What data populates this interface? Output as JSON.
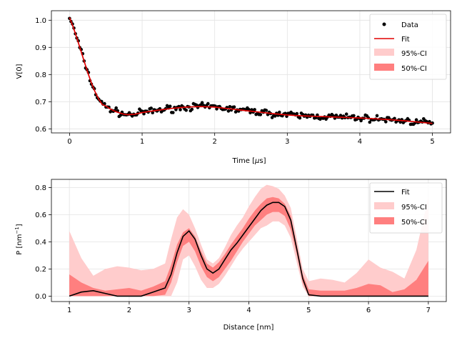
{
  "chart_data": [
    {
      "type": "scatter",
      "xlabel": "Time [μs]",
      "ylabel": "V[0]",
      "xlim": [
        -0.25,
        5.25
      ],
      "ylim": [
        0.585,
        1.035
      ],
      "xticks": [
        "0",
        "1",
        "2",
        "3",
        "4",
        "5"
      ],
      "yticks": [
        "0.6",
        "0.7",
        "0.8",
        "0.9",
        "1.0"
      ],
      "grid": true,
      "legend_position": "top-right",
      "legend": [
        "Data",
        "Fit",
        "95%-CI",
        "50%-CI"
      ],
      "fit": {
        "x": [
          0,
          0.05,
          0.1,
          0.15,
          0.2,
          0.25,
          0.3,
          0.35,
          0.4,
          0.45,
          0.5,
          0.55,
          0.6,
          0.65,
          0.7,
          0.75,
          0.8,
          0.9,
          1.0,
          1.2,
          1.4,
          1.6,
          1.8,
          2.0,
          2.2,
          2.4,
          2.6,
          2.8,
          3.0,
          3.2,
          3.4,
          3.6,
          3.8,
          4.0,
          4.2,
          4.4,
          4.6,
          4.8,
          5.0
        ],
        "y": [
          1.01,
          0.975,
          0.935,
          0.892,
          0.85,
          0.808,
          0.77,
          0.737,
          0.71,
          0.69,
          0.684,
          0.675,
          0.668,
          0.662,
          0.658,
          0.654,
          0.652,
          0.654,
          0.66,
          0.668,
          0.675,
          0.68,
          0.682,
          0.68,
          0.674,
          0.668,
          0.662,
          0.656,
          0.651,
          0.648,
          0.646,
          0.644,
          0.642,
          0.64,
          0.637,
          0.634,
          0.63,
          0.625,
          0.62
        ]
      },
      "colors": {
        "data": "#000000",
        "fit": "#e00000",
        "ci95": "#ffcccc",
        "ci50": "#ff7f7f"
      }
    },
    {
      "type": "line",
      "xlabel": "Distance [nm]",
      "ylabel": "P [nm⁻¹]",
      "xlim": [
        0.7,
        7.3
      ],
      "ylim": [
        -0.04,
        0.86
      ],
      "xticks": [
        "1",
        "2",
        "3",
        "4",
        "5",
        "6",
        "7"
      ],
      "yticks": [
        "0.0",
        "0.2",
        "0.4",
        "0.6",
        "0.8"
      ],
      "grid": true,
      "legend_position": "top-right",
      "legend": [
        "Fit",
        "95%-CI",
        "50%-CI"
      ],
      "x": [
        1.0,
        1.2,
        1.4,
        1.6,
        1.8,
        2.0,
        2.2,
        2.4,
        2.6,
        2.7,
        2.8,
        2.9,
        3.0,
        3.1,
        3.2,
        3.3,
        3.4,
        3.5,
        3.6,
        3.7,
        3.8,
        3.9,
        4.0,
        4.1,
        4.2,
        4.3,
        4.4,
        4.5,
        4.6,
        4.7,
        4.8,
        4.9,
        5.0,
        5.2,
        5.4,
        5.6,
        5.8,
        6.0,
        6.2,
        6.4,
        6.6,
        6.8,
        7.0
      ],
      "fit": [
        0.0,
        0.03,
        0.04,
        0.02,
        0.0,
        0.0,
        0.0,
        0.03,
        0.06,
        0.16,
        0.32,
        0.44,
        0.48,
        0.42,
        0.3,
        0.2,
        0.17,
        0.2,
        0.27,
        0.34,
        0.39,
        0.45,
        0.51,
        0.57,
        0.63,
        0.67,
        0.69,
        0.69,
        0.66,
        0.56,
        0.35,
        0.13,
        0.01,
        0.0,
        0.0,
        0.0,
        0.0,
        0.0,
        0.0,
        0.0,
        0.0,
        0.0,
        0.0
      ],
      "ci95_low": [
        0.0,
        0.0,
        0.0,
        0.0,
        0.0,
        0.0,
        0.0,
        0.0,
        0.0,
        0.0,
        0.1,
        0.27,
        0.3,
        0.22,
        0.12,
        0.06,
        0.06,
        0.09,
        0.15,
        0.22,
        0.29,
        0.35,
        0.4,
        0.45,
        0.5,
        0.52,
        0.55,
        0.55,
        0.52,
        0.43,
        0.25,
        0.07,
        0.0,
        0.0,
        0.0,
        0.0,
        0.0,
        0.0,
        0.0,
        0.0,
        0.0,
        0.0,
        0.0
      ],
      "ci95_high": [
        0.48,
        0.28,
        0.15,
        0.2,
        0.22,
        0.21,
        0.19,
        0.2,
        0.24,
        0.42,
        0.58,
        0.64,
        0.6,
        0.5,
        0.38,
        0.27,
        0.24,
        0.28,
        0.36,
        0.45,
        0.52,
        0.58,
        0.66,
        0.73,
        0.79,
        0.82,
        0.81,
        0.79,
        0.74,
        0.65,
        0.43,
        0.2,
        0.11,
        0.13,
        0.12,
        0.1,
        0.17,
        0.27,
        0.21,
        0.18,
        0.13,
        0.34,
        0.73
      ],
      "ci50_low": [
        0.0,
        0.0,
        0.0,
        0.0,
        0.0,
        0.0,
        0.0,
        0.0,
        0.01,
        0.1,
        0.25,
        0.37,
        0.4,
        0.33,
        0.22,
        0.14,
        0.11,
        0.14,
        0.2,
        0.26,
        0.33,
        0.4,
        0.46,
        0.52,
        0.56,
        0.6,
        0.62,
        0.62,
        0.59,
        0.49,
        0.31,
        0.1,
        0.0,
        0.0,
        0.0,
        0.0,
        0.0,
        0.0,
        0.0,
        0.0,
        0.0,
        0.0,
        0.0
      ],
      "ci50_high": [
        0.16,
        0.1,
        0.06,
        0.04,
        0.05,
        0.06,
        0.04,
        0.07,
        0.11,
        0.23,
        0.38,
        0.47,
        0.5,
        0.44,
        0.33,
        0.24,
        0.21,
        0.25,
        0.31,
        0.38,
        0.44,
        0.5,
        0.57,
        0.63,
        0.68,
        0.72,
        0.73,
        0.72,
        0.68,
        0.59,
        0.38,
        0.16,
        0.05,
        0.04,
        0.04,
        0.04,
        0.06,
        0.09,
        0.08,
        0.03,
        0.05,
        0.12,
        0.26
      ],
      "colors": {
        "fit": "#000000",
        "ci95": "#ffcccc",
        "ci50": "#ff7f7f"
      }
    }
  ]
}
